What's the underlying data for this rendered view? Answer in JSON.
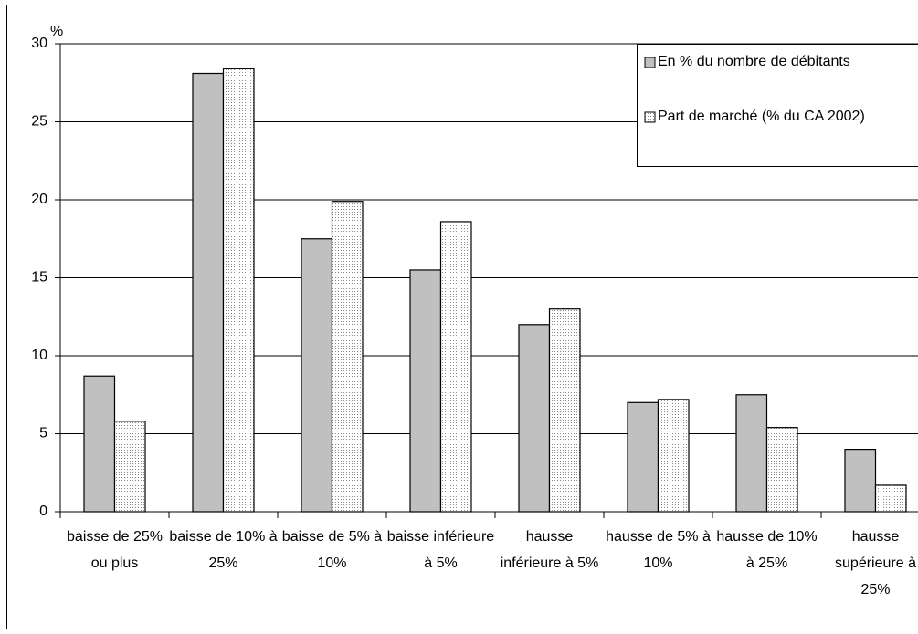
{
  "chart_data": {
    "type": "bar",
    "y_unit": "%",
    "categories": [
      "baisse de 25% ou plus",
      "baisse de 10% à 25%",
      "baisse de 5% à 10%",
      "baisse inférieure à 5%",
      "hausse inférieure à 5%",
      "hausse de 5% à 10%",
      "hausse de 10% à 25%",
      "hausse supérieure à 25%"
    ],
    "series": [
      {
        "name": "En % du nombre de débitants",
        "color": "#c0c0c0",
        "values": [
          8.7,
          28.1,
          17.5,
          15.5,
          12.0,
          7.0,
          7.5,
          4.0
        ]
      },
      {
        "name": "Part de marché (% du CA 2002)",
        "color": "dotted",
        "values": [
          5.8,
          28.4,
          19.9,
          18.6,
          13.0,
          7.2,
          5.4,
          1.7
        ]
      }
    ],
    "ylim": [
      0,
      30
    ],
    "yticks": [
      0,
      5,
      10,
      15,
      20,
      25,
      30
    ],
    "grid": true,
    "legend": "top-right"
  }
}
